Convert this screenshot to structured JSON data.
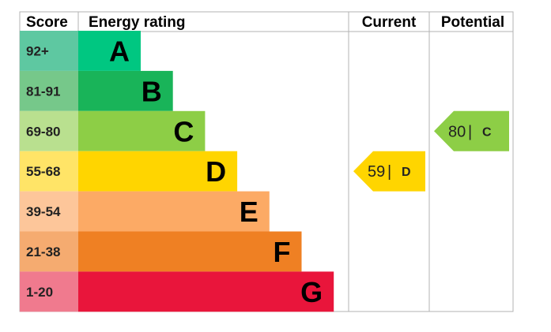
{
  "headers": {
    "score": "Score",
    "energy_rating": "Energy rating",
    "current": "Current",
    "potential": "Potential"
  },
  "chart_data": {
    "type": "bar",
    "bands": [
      {
        "score": "92+",
        "letter": "A",
        "color": "#00c781",
        "score_bg": "#5ec8a1",
        "letter_color": "#000000"
      },
      {
        "score": "81-91",
        "letter": "B",
        "color": "#19b459",
        "score_bg": "#76c88a",
        "letter_color": "#000000"
      },
      {
        "score": "69-80",
        "letter": "C",
        "color": "#8dce46",
        "score_bg": "#b9e08f",
        "letter_color": "#000000"
      },
      {
        "score": "55-68",
        "letter": "D",
        "color": "#ffd500",
        "score_bg": "#ffe467",
        "letter_color": "#000000"
      },
      {
        "score": "39-54",
        "letter": "E",
        "color": "#fcaa65",
        "score_bg": "#fdc69a",
        "letter_color": "#000000"
      },
      {
        "score": "21-38",
        "letter": "F",
        "color": "#ef8023",
        "score_bg": "#f5ab70",
        "letter_color": "#000000"
      },
      {
        "score": "1-20",
        "letter": "G",
        "color": "#e9153b",
        "score_bg": "#f07a8e",
        "letter_color": "#000000"
      }
    ],
    "current": {
      "value": "59",
      "letter": "D",
      "color": "#ffd500"
    },
    "potential": {
      "value": "80",
      "letter": "C",
      "color": "#8dce46"
    },
    "separator": "|",
    "border_color": "#b3b3b3"
  }
}
